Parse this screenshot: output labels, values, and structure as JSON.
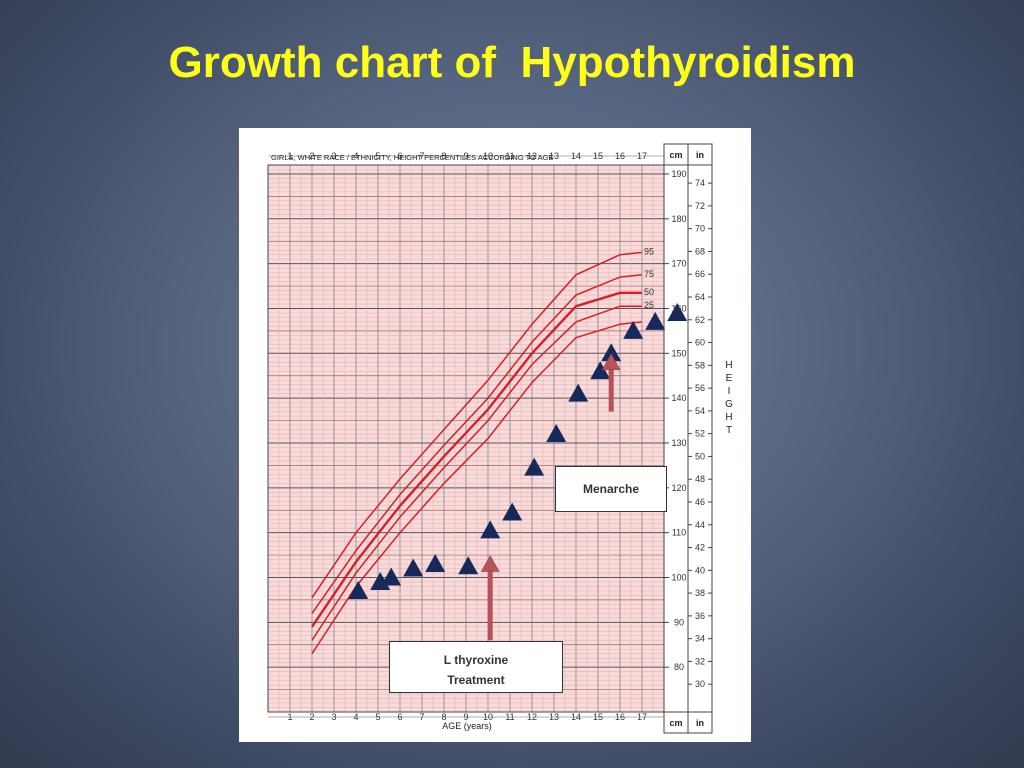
{
  "slide": {
    "title": "Growth chart of  Hypothyroidism"
  },
  "chart_data": {
    "type": "scatter",
    "title": "GIRLS, WHITE RACE / ETHNICITY, HEIGHT PERCENTILES ACCORDING TO AGE",
    "xlabel": "AGE (years)",
    "ylabel": "HEIGHT",
    "left_unit": "cm",
    "right_unit": "in",
    "xlim": [
      0,
      18
    ],
    "ylim_cm": [
      70,
      192
    ],
    "x_ticks": [
      1,
      2,
      3,
      4,
      5,
      6,
      7,
      8,
      9,
      10,
      11,
      12,
      13,
      14,
      15,
      16,
      17
    ],
    "cm_ticks": [
      80,
      90,
      100,
      110,
      120,
      130,
      140,
      150,
      160,
      170,
      180,
      190
    ],
    "in_ticks": [
      30,
      32,
      34,
      36,
      38,
      40,
      42,
      44,
      46,
      48,
      50,
      52,
      54,
      56,
      58,
      60,
      62,
      64,
      66,
      68,
      70,
      72,
      74
    ],
    "grid": true,
    "percentile_curves": [
      {
        "label": "95",
        "color": "#d61f26",
        "x": [
          2,
          4,
          6,
          8,
          10,
          12,
          14,
          16,
          17
        ],
        "y": [
          95.5,
          110,
          122,
          133,
          144,
          156.5,
          167.5,
          172,
          172.5
        ]
      },
      {
        "label": "75",
        "color": "#d61f26",
        "x": [
          2,
          4,
          6,
          8,
          10,
          12,
          14,
          16,
          17
        ],
        "y": [
          92,
          106,
          118.5,
          129.5,
          140,
          152.5,
          163,
          167,
          167.5
        ]
      },
      {
        "label": "50",
        "color": "#d61f26",
        "x": [
          2,
          4,
          6,
          8,
          10,
          12,
          14,
          16,
          17
        ],
        "y": [
          89,
          103.5,
          116,
          127,
          137.5,
          150,
          160.5,
          163.5,
          163.5
        ]
      },
      {
        "label": "25",
        "color": "#d61f26",
        "x": [
          2,
          4,
          6,
          8,
          10,
          12,
          14,
          16,
          17
        ],
        "y": [
          86,
          101,
          113.5,
          124.5,
          135,
          147.5,
          157,
          160.5,
          160.5
        ]
      },
      {
        "label": "",
        "color": "#d61f26",
        "x": [
          2,
          4,
          6,
          8,
          10,
          12,
          14,
          16,
          17
        ],
        "y": [
          83,
          98,
          110,
          121,
          131,
          143.5,
          153.5,
          156.5,
          157
        ]
      }
    ],
    "series": [
      {
        "marker": "triangle",
        "color": "#17295a",
        "x": [
          4.1,
          5.1,
          5.6,
          6.6,
          7.6,
          9.1,
          10.1,
          11.1,
          12.1,
          13.1,
          14.1,
          15.1,
          15.6,
          16.6,
          17.6,
          18.6
        ],
        "y": [
          97,
          99,
          100,
          102,
          103,
          102.5,
          110.5,
          114.5,
          124.5,
          132,
          141,
          146,
          150,
          155,
          157,
          159
        ]
      }
    ],
    "annotations": [
      {
        "label": "Menarche",
        "arrow_x": 15.6,
        "arrow_from_cm": 137,
        "arrow_to_cm": 149
      },
      {
        "label": "L thyroxine Treatment",
        "line1": "L thyroxine",
        "line2": "Treatment",
        "arrow_x": 10.1,
        "arrow_from_cm": 86,
        "arrow_to_cm": 104
      }
    ]
  }
}
